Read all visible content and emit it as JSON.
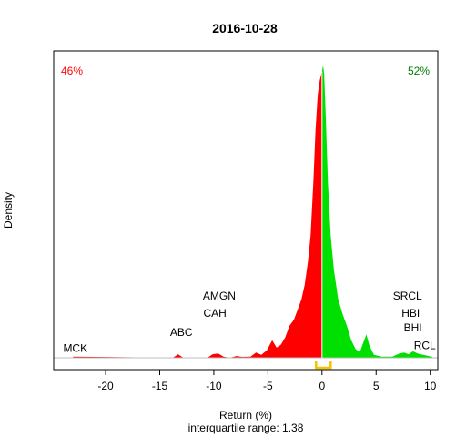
{
  "chart_data": {
    "type": "area",
    "title": "2016-10-28",
    "xlabel": "Return (%)",
    "ylabel": "Density",
    "subtitle": "interquartile range: 1.38",
    "xlim": [
      -24.8,
      10.7
    ],
    "ylim": [
      0,
      1
    ],
    "x_ticks": [
      {
        "value": -20,
        "label": "-20"
      },
      {
        "value": -15,
        "label": "-15"
      },
      {
        "value": -10,
        "label": "-10"
      },
      {
        "value": -5,
        "label": "-5"
      },
      {
        "value": 0,
        "label": "0"
      },
      {
        "value": 5,
        "label": "5"
      },
      {
        "value": 10,
        "label": "10"
      }
    ],
    "negative_share": "46%",
    "positive_share": "52%",
    "colors": {
      "negative": "#ff0000",
      "positive": "#00e000",
      "positive_text": "#008000",
      "iqr": "#f5c400"
    },
    "iqr_bracket": [
      -0.55,
      0.8
    ],
    "density": [
      [
        -23,
        0.004
      ],
      [
        -13.8,
        0
      ],
      [
        -13.3,
        0.012
      ],
      [
        -12.9,
        0.002
      ],
      [
        -12.5,
        0
      ],
      [
        -10.6,
        0
      ],
      [
        -10.1,
        0.012
      ],
      [
        -9.6,
        0.015
      ],
      [
        -9.1,
        0.004
      ],
      [
        -8.5,
        0
      ],
      [
        -7.9,
        0.006
      ],
      [
        -7.4,
        0.003
      ],
      [
        -6.6,
        0.004
      ],
      [
        -6.1,
        0.018
      ],
      [
        -5.6,
        0.01
      ],
      [
        -5.1,
        0.026
      ],
      [
        -4.6,
        0.06
      ],
      [
        -4.2,
        0.035
      ],
      [
        -3.8,
        0.045
      ],
      [
        -3.4,
        0.07
      ],
      [
        -3.0,
        0.11
      ],
      [
        -2.6,
        0.13
      ],
      [
        -2.2,
        0.17
      ],
      [
        -1.9,
        0.2
      ],
      [
        -1.6,
        0.25
      ],
      [
        -1.3,
        0.33
      ],
      [
        -1.05,
        0.42
      ],
      [
        -0.8,
        0.6
      ],
      [
        -0.6,
        0.78
      ],
      [
        -0.4,
        0.9
      ],
      [
        -0.2,
        0.95
      ],
      [
        0,
        0.98
      ],
      [
        0.1,
        1.0
      ],
      [
        0.2,
        0.97
      ],
      [
        0.35,
        0.82
      ],
      [
        0.55,
        0.6
      ],
      [
        0.8,
        0.42
      ],
      [
        1.1,
        0.3
      ],
      [
        1.5,
        0.2
      ],
      [
        1.9,
        0.15
      ],
      [
        2.3,
        0.11
      ],
      [
        2.7,
        0.06
      ],
      [
        3.1,
        0.03
      ],
      [
        3.5,
        0.02
      ],
      [
        3.8,
        0.05
      ],
      [
        4.1,
        0.08
      ],
      [
        4.4,
        0.04
      ],
      [
        4.8,
        0.01
      ],
      [
        5.5,
        0.004
      ],
      [
        6.5,
        0.004
      ],
      [
        7.1,
        0.014
      ],
      [
        7.6,
        0.018
      ],
      [
        8.0,
        0.012
      ],
      [
        8.4,
        0.022
      ],
      [
        8.9,
        0.014
      ],
      [
        9.6,
        0.008
      ],
      [
        10.2,
        0.003
      ]
    ],
    "annotations": [
      {
        "label": "MCK",
        "x": -22.8,
        "y": 0.02
      },
      {
        "label": "ABC",
        "x": -13.0,
        "y": 0.075
      },
      {
        "label": "CAH",
        "x": -9.9,
        "y": 0.14
      },
      {
        "label": "AMGN",
        "x": -9.5,
        "y": 0.2
      },
      {
        "label": "SRCL",
        "x": 7.9,
        "y": 0.2
      },
      {
        "label": "HBI",
        "x": 8.2,
        "y": 0.14
      },
      {
        "label": "BHI",
        "x": 8.4,
        "y": 0.09
      },
      {
        "label": "RCL",
        "x": 9.5,
        "y": 0.03
      }
    ]
  }
}
